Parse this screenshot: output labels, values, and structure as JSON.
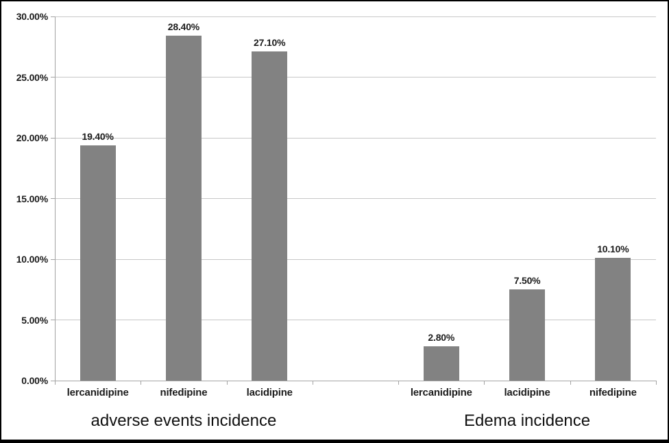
{
  "chart_data": {
    "type": "bar",
    "title": "",
    "xlabel": "",
    "ylabel": "",
    "grid": true,
    "legend": "none",
    "y_axis": {
      "min": 0,
      "max": 30,
      "step": 5,
      "unit": "%",
      "tick_labels": [
        "0.00%",
        "5.00%",
        "10.00%",
        "15.00%",
        "20.00%",
        "25.00%",
        "30.00%"
      ]
    },
    "groups": [
      {
        "label": "adverse events incidence",
        "bars": [
          {
            "category": "lercanidipine",
            "value": 19.4,
            "value_label": "19.40%"
          },
          {
            "category": "nifedipine",
            "value": 28.4,
            "value_label": "28.40%"
          },
          {
            "category": "lacidipine",
            "value": 27.1,
            "value_label": "27.10%"
          }
        ]
      },
      {
        "label": "Edema incidence",
        "bars": [
          {
            "category": "lercanidipine",
            "value": 2.8,
            "value_label": "2.80%"
          },
          {
            "category": "lacidipine",
            "value": 7.5,
            "value_label": "7.50%"
          },
          {
            "category": "nifedipine",
            "value": 10.1,
            "value_label": "10.10%"
          }
        ]
      }
    ],
    "gap_slots_between_groups": 1,
    "colors": {
      "bar_fill": "#828282",
      "gridline": "#c7c7c7",
      "axis": "#a3a3a3",
      "text": "#1c1c1c",
      "frame_border": "#000000",
      "background": "#ffffff"
    }
  }
}
